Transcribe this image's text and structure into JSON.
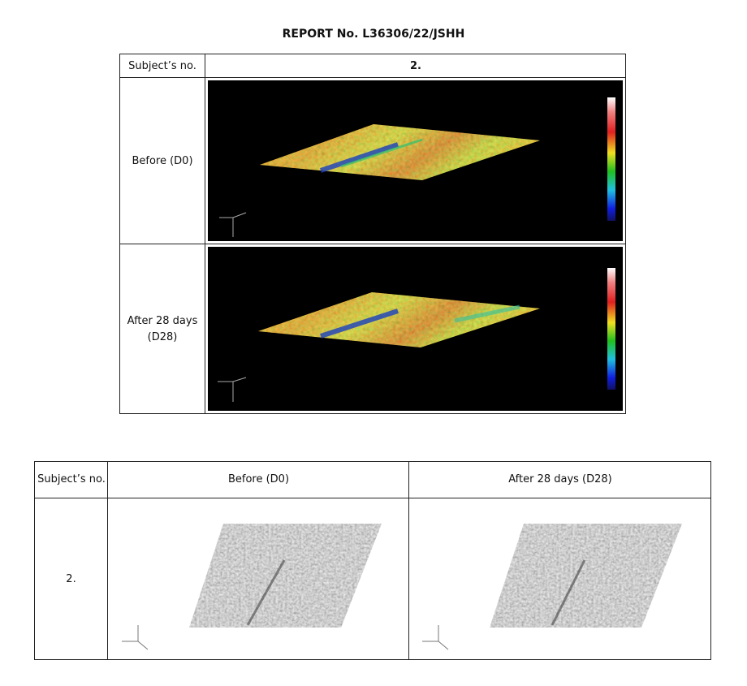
{
  "header": {
    "title": "REPORT No. L36306/22/JSHH"
  },
  "table1": {
    "header": [
      "Subject’s no.",
      "2."
    ],
    "rows": [
      [
        "Before (D0)"
      ],
      [
        "After 28 days (D28)"
      ]
    ]
  },
  "table2": {
    "header": [
      "Subject’s no.",
      "Before (D0)",
      "After 28 days (D28)"
    ],
    "rows": [
      [
        "2."
      ]
    ]
  }
}
